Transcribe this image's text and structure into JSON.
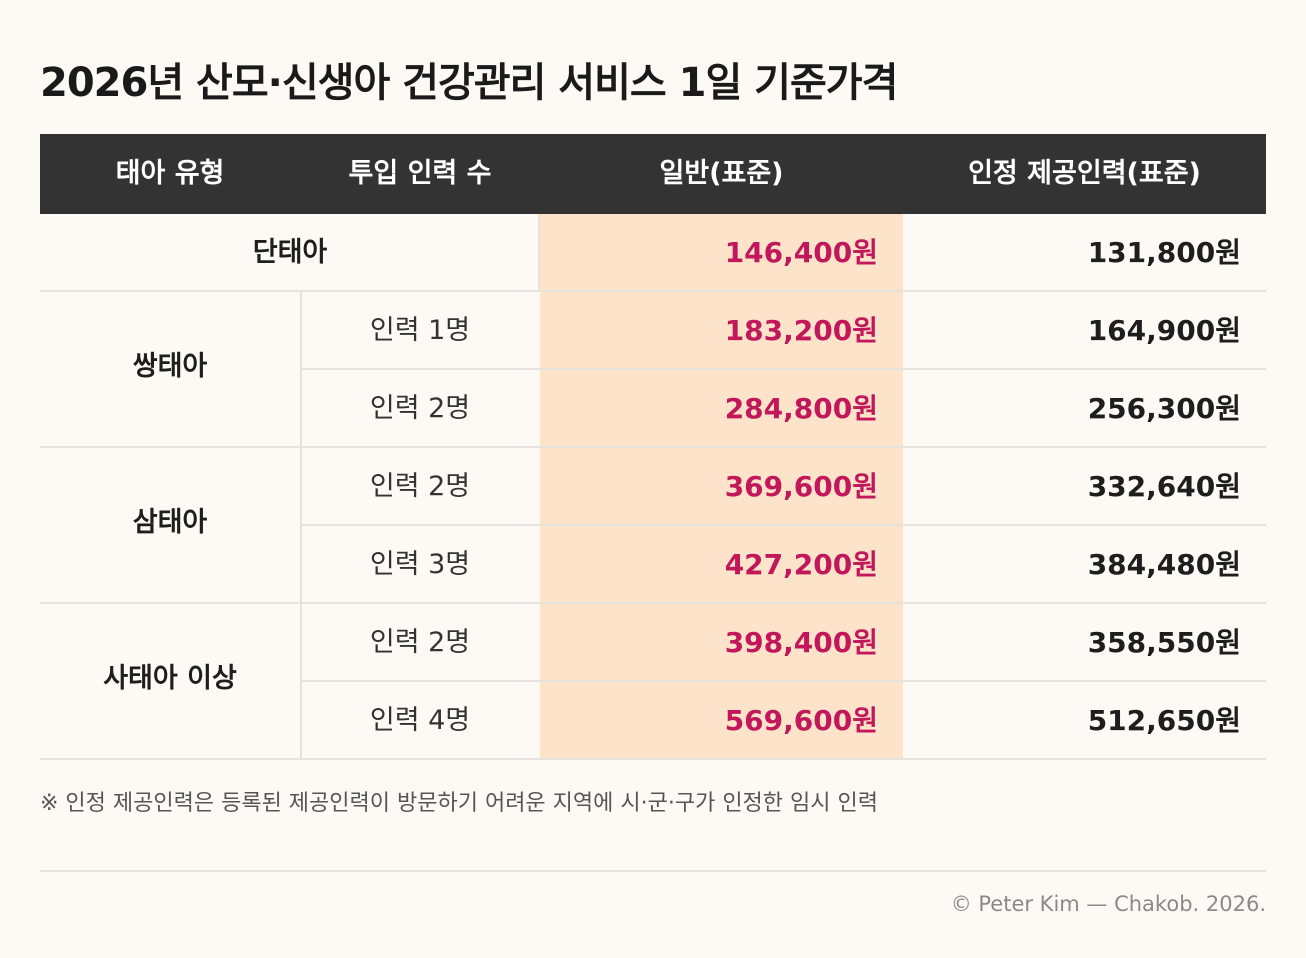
{
  "title": "2026년 산모·신생아 건강관리 서비스 1일 기준가격",
  "header": {
    "type": "태아 유형",
    "staff": "투입 인력 수",
    "general": "일반(표준)",
    "certified": "인정 제공인력(표준)"
  },
  "groups": [
    {
      "type": "단태아"
    },
    {
      "type": "쌍태아"
    },
    {
      "type": "삼태아"
    },
    {
      "type": "사태아 이상"
    }
  ],
  "rows": [
    {
      "staff": "",
      "general": "146,400원",
      "certified": "131,800원"
    },
    {
      "staff": "인력 1명",
      "general": "183,200원",
      "certified": "164,900원"
    },
    {
      "staff": "인력 2명",
      "general": "284,800원",
      "certified": "256,300원"
    },
    {
      "staff": "인력 2명",
      "general": "369,600원",
      "certified": "332,640원"
    },
    {
      "staff": "인력 3명",
      "general": "427,200원",
      "certified": "384,480원"
    },
    {
      "staff": "인력 2명",
      "general": "398,400원",
      "certified": "358,550원"
    },
    {
      "staff": "인력 4명",
      "general": "569,600원",
      "certified": "512,650원"
    }
  ],
  "note": "※ 인정 제공인력은 등록된 제공인력이 방문하기 어려운 지역에 시·군·구가 인정한 임시 인력",
  "credit": "© Peter Kim — Chakob. 2026.",
  "colors": {
    "header_bg": "#333333",
    "highlight_col": "#fde3c9",
    "price_accent": "#c2185b"
  }
}
